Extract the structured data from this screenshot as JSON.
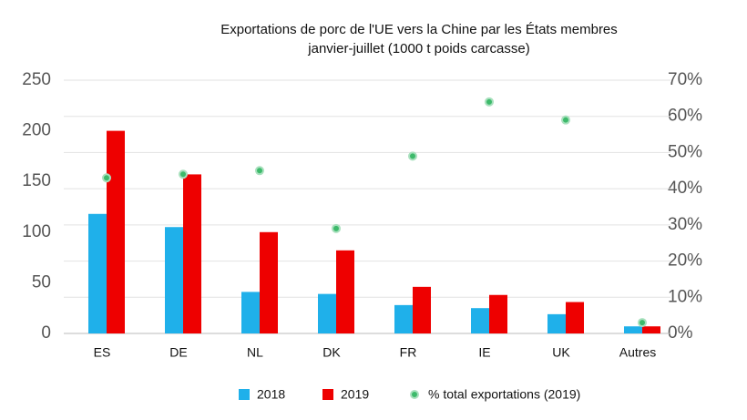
{
  "chart_data": {
    "type": "bar",
    "title": "Exportations de porc de l'UE vers la Chine par les États membres janvier-juillet (1000 t poids carcasse)",
    "categories": [
      "ES",
      "DE",
      "NL",
      "DK",
      "FR",
      "IE",
      "UK",
      "Autres"
    ],
    "series": [
      {
        "name": "2018",
        "color": "#1fb0ea",
        "values": [
          118,
          105,
          41,
          39,
          28,
          25,
          19,
          7
        ]
      },
      {
        "name": "2019",
        "color": "#ee0000",
        "values": [
          200,
          157,
          100,
          82,
          46,
          38,
          31,
          7
        ]
      },
      {
        "name": "% total exportations (2019)",
        "color": "#3dba6b",
        "type": "scatter",
        "axis": "y2",
        "values": [
          43,
          44,
          45,
          29,
          49,
          64,
          59,
          3
        ]
      }
    ],
    "ylim": [
      0,
      250
    ],
    "yticks": [
      0,
      50,
      100,
      150,
      200,
      250
    ],
    "y2lim": [
      0,
      70
    ],
    "y2ticks": [
      {
        "value": 0,
        "label": "0%"
      },
      {
        "value": 10,
        "label": "10%"
      },
      {
        "value": 20,
        "label": "20%"
      },
      {
        "value": 30,
        "label": "30%"
      },
      {
        "value": 40,
        "label": "40%"
      },
      {
        "value": 50,
        "label": "50%"
      },
      {
        "value": 60,
        "label": "60%"
      },
      {
        "value": 70,
        "label": "70%"
      }
    ],
    "grid": true,
    "legend": "bottom"
  }
}
